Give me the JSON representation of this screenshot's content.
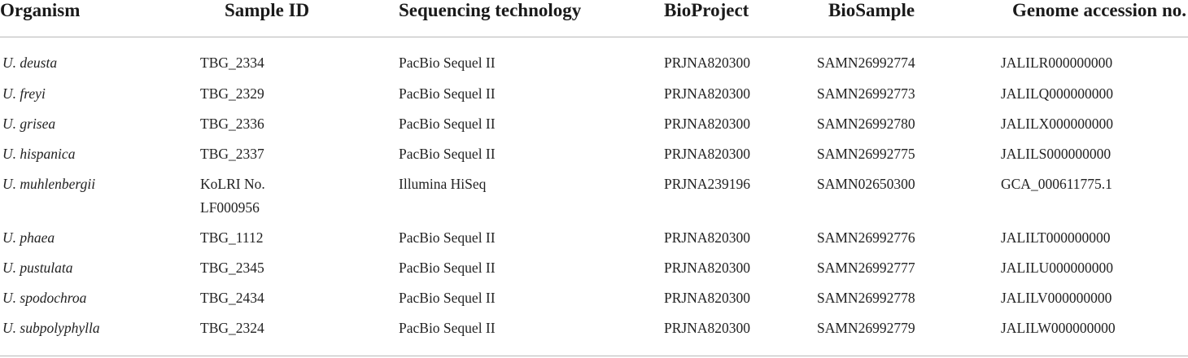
{
  "table": {
    "headers": {
      "organism": "Organism",
      "sample_id": "Sample ID",
      "sequencing_technology": "Sequencing technology",
      "bioproject": "BioProject",
      "biosample": "BioSample",
      "genome_accession": "Genome accession no."
    },
    "rows": [
      {
        "organism": "U. deusta",
        "sample_id_1": "TBG_2334",
        "sample_id_2": "",
        "sequencing_technology": "PacBio Sequel II",
        "bioproject": "PRJNA820300",
        "biosample": "SAMN26992774",
        "genome_accession": "JALILR000000000"
      },
      {
        "organism": "U. freyi",
        "sample_id_1": "TBG_2329",
        "sample_id_2": "",
        "sequencing_technology": "PacBio Sequel II",
        "bioproject": "PRJNA820300",
        "biosample": "SAMN26992773",
        "genome_accession": "JALILQ000000000"
      },
      {
        "organism": "U. grisea",
        "sample_id_1": "TBG_2336",
        "sample_id_2": "",
        "sequencing_technology": "PacBio Sequel II",
        "bioproject": "PRJNA820300",
        "biosample": "SAMN26992780",
        "genome_accession": "JALILX000000000"
      },
      {
        "organism": "U. hispanica",
        "sample_id_1": "TBG_2337",
        "sample_id_2": "",
        "sequencing_technology": "PacBio Sequel II",
        "bioproject": "PRJNA820300",
        "biosample": "SAMN26992775",
        "genome_accession": "JALILS000000000"
      },
      {
        "organism": "U. muhlenbergii",
        "sample_id_1": "KoLRI No.",
        "sample_id_2": "LF000956",
        "sequencing_technology": "Illumina HiSeq",
        "bioproject": "PRJNA239196",
        "biosample": "SAMN02650300",
        "genome_accession": "GCA_000611775.1"
      },
      {
        "organism": "U. phaea",
        "sample_id_1": "TBG_1112",
        "sample_id_2": "",
        "sequencing_technology": "PacBio Sequel II",
        "bioproject": "PRJNA820300",
        "biosample": "SAMN26992776",
        "genome_accession": "JALILT000000000"
      },
      {
        "organism": "U. pustulata",
        "sample_id_1": "TBG_2345",
        "sample_id_2": "",
        "sequencing_technology": "PacBio Sequel II",
        "bioproject": "PRJNA820300",
        "biosample": "SAMN26992777",
        "genome_accession": "JALILU000000000"
      },
      {
        "organism": "U. spodochroa",
        "sample_id_1": "TBG_2434",
        "sample_id_2": "",
        "sequencing_technology": "PacBio Sequel II",
        "bioproject": "PRJNA820300",
        "biosample": "SAMN26992778",
        "genome_accession": "JALILV000000000"
      },
      {
        "organism": "U. subpolyphylla",
        "sample_id_1": "TBG_2324",
        "sample_id_2": "",
        "sequencing_technology": "PacBio Sequel II",
        "bioproject": "PRJNA820300",
        "biosample": "SAMN26992779",
        "genome_accession": "JALILW000000000"
      }
    ]
  }
}
